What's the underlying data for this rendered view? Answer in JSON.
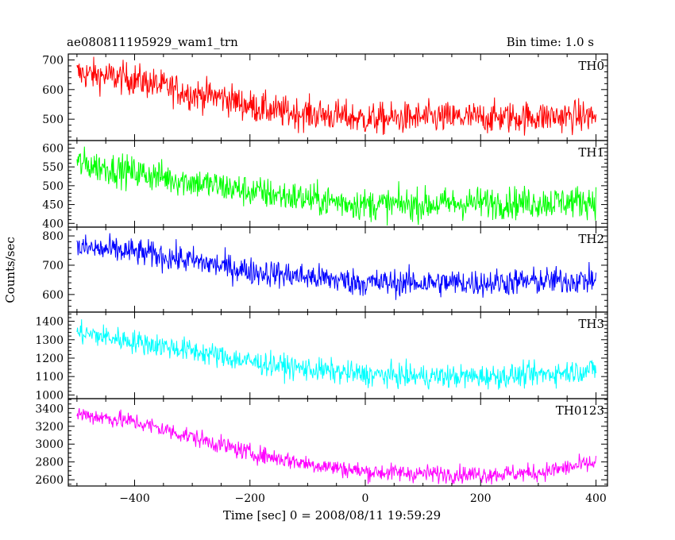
{
  "chart_data": {
    "type": "line",
    "title": "ae080811195929_wam1_trn",
    "subtitle": "Bin time: 1.0 s",
    "xlabel": "Time [sec] 0 = 2008/08/11 19:59:29",
    "ylabel": "Counts/sec",
    "xlim": [
      -515,
      420
    ],
    "x_ticks": [
      -400,
      -200,
      0,
      200,
      400
    ],
    "x_tick_labels": [
      "−400",
      "−200",
      "0",
      "200",
      "400"
    ],
    "x_range": [
      -500,
      400
    ],
    "grid": false,
    "panels": [
      {
        "name": "TH0",
        "color": "#ff0000",
        "ylim": [
          428,
          720
        ],
        "y_ticks": [
          500,
          600,
          700
        ],
        "y_tick_labels": [
          "500",
          "600",
          "700"
        ],
        "trend": [
          [
            -500,
            655
          ],
          [
            -400,
            635
          ],
          [
            -300,
            585
          ],
          [
            -250,
            575
          ],
          [
            -200,
            545
          ],
          [
            -150,
            525
          ],
          [
            -50,
            512
          ],
          [
            0,
            500
          ],
          [
            100,
            505
          ],
          [
            200,
            505
          ],
          [
            300,
            508
          ],
          [
            400,
            510
          ]
        ],
        "noise": 38
      },
      {
        "name": "TH1",
        "color": "#00ff00",
        "ylim": [
          390,
          620
        ],
        "y_ticks": [
          400,
          450,
          500,
          550,
          600
        ],
        "y_tick_labels": [
          "400",
          "450",
          "500",
          "550",
          "600"
        ],
        "trend": [
          [
            -500,
            560
          ],
          [
            -400,
            535
          ],
          [
            -300,
            510
          ],
          [
            -200,
            485
          ],
          [
            -100,
            465
          ],
          [
            0,
            450
          ],
          [
            100,
            450
          ],
          [
            200,
            455
          ],
          [
            300,
            455
          ],
          [
            400,
            460
          ]
        ],
        "noise": 30
      },
      {
        "name": "TH2",
        "color": "#0000ff",
        "ylim": [
          540,
          830
        ],
        "y_ticks": [
          600,
          700,
          800
        ],
        "y_tick_labels": [
          "600",
          "700",
          "800"
        ],
        "trend": [
          [
            -500,
            760
          ],
          [
            -400,
            745
          ],
          [
            -300,
            715
          ],
          [
            -200,
            680
          ],
          [
            -100,
            660
          ],
          [
            0,
            640
          ],
          [
            100,
            640
          ],
          [
            200,
            640
          ],
          [
            300,
            645
          ],
          [
            400,
            650
          ]
        ],
        "noise": 33
      },
      {
        "name": "TH3",
        "color": "#00ffff",
        "ylim": [
          980,
          1450
        ],
        "y_ticks": [
          1000,
          1100,
          1200,
          1300,
          1400
        ],
        "y_tick_labels": [
          "1000",
          "1100",
          "1200",
          "1300",
          "1400"
        ],
        "trend": [
          [
            -500,
            1340
          ],
          [
            -400,
            1290
          ],
          [
            -300,
            1240
          ],
          [
            -200,
            1180
          ],
          [
            -100,
            1140
          ],
          [
            0,
            1110
          ],
          [
            100,
            1100
          ],
          [
            200,
            1100
          ],
          [
            300,
            1110
          ],
          [
            400,
            1140
          ]
        ],
        "noise": 45
      },
      {
        "name": "TH0123",
        "color": "#ff00ff",
        "ylim": [
          2530,
          3510
        ],
        "y_ticks": [
          2600,
          2800,
          3000,
          3200,
          3400
        ],
        "y_tick_labels": [
          "2600",
          "2800",
          "3000",
          "3200",
          "3400"
        ],
        "trend": [
          [
            -500,
            3340
          ],
          [
            -400,
            3250
          ],
          [
            -300,
            3080
          ],
          [
            -200,
            2900
          ],
          [
            -100,
            2780
          ],
          [
            0,
            2690
          ],
          [
            100,
            2670
          ],
          [
            200,
            2660
          ],
          [
            300,
            2680
          ],
          [
            400,
            2790
          ]
        ],
        "noise": 70
      }
    ]
  }
}
